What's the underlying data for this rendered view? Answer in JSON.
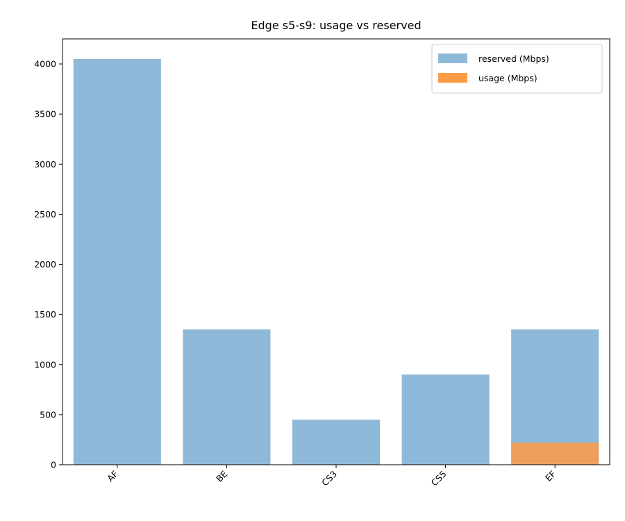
{
  "chart_data": {
    "type": "bar",
    "title": "Edge s5-s9: usage vs reserved",
    "xlabel": "",
    "ylabel": "",
    "categories": [
      "AF",
      "BE",
      "CS3",
      "CS5",
      "EF"
    ],
    "series": [
      {
        "name": "reserved (Mbps)",
        "values": [
          4050,
          1350,
          450,
          900,
          1350
        ],
        "color": "#8fb9d9"
      },
      {
        "name": "usage (Mbps)",
        "values": [
          0,
          0,
          0,
          0,
          220
        ],
        "color": "#ff9a45"
      }
    ],
    "ylim": [
      0,
      4250
    ],
    "yticks": [
      0,
      500,
      1000,
      1500,
      2000,
      2500,
      3000,
      3500,
      4000
    ],
    "legend_position": "top-right",
    "grid": false
  }
}
